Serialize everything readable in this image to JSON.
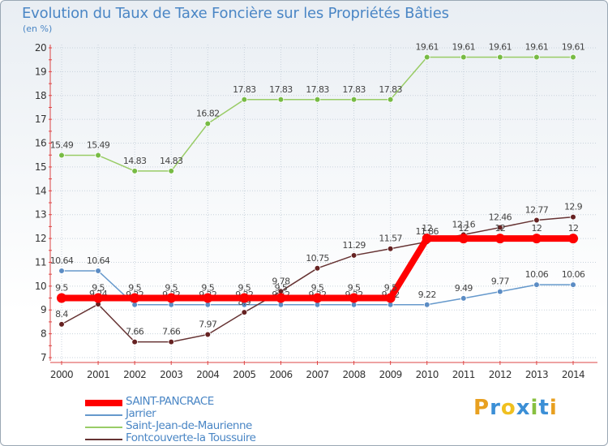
{
  "header": {
    "title": "Evolution du Taux de Taxe Foncière sur les Propriétés Bâties",
    "unit": "(en %)"
  },
  "legend": [
    {
      "label": "SAINT-PANCRACE",
      "color": "#ff0000"
    },
    {
      "label": "Jarrier",
      "color": "#6699cc"
    },
    {
      "label": "Saint-Jean-de-Maurienne",
      "color": "#99cc66"
    },
    {
      "label": "Fontcouverte-la Toussuire",
      "color": "#663333"
    }
  ],
  "logo": {
    "letters": [
      "P",
      "r",
      "o",
      "x",
      "i",
      "t",
      "i"
    ]
  },
  "chart_data": {
    "type": "line",
    "title": "Evolution du Taux de Taxe Foncière sur les Propriétés Bâties",
    "ylabel": "(en %)",
    "xlabel": "",
    "ylim": [
      7,
      20
    ],
    "yticks": [
      7,
      8,
      9,
      10,
      11,
      12,
      13,
      14,
      15,
      16,
      17,
      18,
      19,
      20
    ],
    "categories": [
      "2000",
      "2001",
      "2002",
      "2003",
      "2004",
      "2005",
      "2006",
      "2007",
      "2008",
      "2009",
      "2010",
      "2011",
      "2012",
      "2013",
      "2014"
    ],
    "series": [
      {
        "name": "Jarrier",
        "color": "#6699cc",
        "marker": "#5b8cc4",
        "values": [
          10.64,
          10.64,
          9.22,
          9.22,
          9.22,
          9.22,
          9.22,
          9.22,
          9.22,
          9.22,
          9.22,
          9.49,
          9.77,
          10.06,
          10.06
        ],
        "labels": [
          "10.64",
          "10.64",
          "9.22",
          "9.22",
          "9.22",
          "9.22",
          "9.22",
          "9.22",
          "9.22",
          "9.22",
          "9.22",
          "9.49",
          "9.77",
          "10.06",
          "10.06"
        ]
      },
      {
        "name": "Saint-Jean-de-Maurienne",
        "color": "#99cc66",
        "marker": "#77bb44",
        "values": [
          15.49,
          15.49,
          14.83,
          14.83,
          16.82,
          17.83,
          17.83,
          17.83,
          17.83,
          17.83,
          19.61,
          19.61,
          19.61,
          19.61,
          19.61
        ],
        "labels": [
          "15.49",
          "15.49",
          "14.83",
          "14.83",
          "16.82",
          "17.83",
          "17.83",
          "17.83",
          "17.83",
          "17.83",
          "19.61",
          "19.61",
          "19.61",
          "19.61",
          "19.61"
        ]
      },
      {
        "name": "Fontcouverte-la Toussuire",
        "color": "#663333",
        "marker": "#662222",
        "values": [
          8.4,
          9.24,
          7.66,
          7.66,
          7.97,
          8.9,
          9.78,
          10.75,
          11.29,
          11.57,
          11.86,
          12.16,
          12.46,
          12.77,
          12.9
        ],
        "labels": [
          "8.4",
          "9.24",
          "7.66",
          "7.66",
          "7.97",
          "8.9",
          "9.78",
          "10.75",
          "11.29",
          "11.57",
          "11.86",
          "12.16",
          "12.46",
          "12.77",
          "12.9"
        ]
      },
      {
        "name": "SAINT-PANCRACE",
        "color": "#ff0000",
        "marker": "#ff0000",
        "values": [
          9.5,
          9.5,
          9.5,
          9.5,
          9.5,
          9.5,
          9.5,
          9.5,
          9.5,
          9.5,
          12,
          12,
          12,
          12,
          12
        ],
        "labels": [
          "9.5",
          "9.5",
          "9.5",
          "9.5",
          "9.5",
          "9.5",
          "9.5",
          "9.5",
          "9.5",
          "9.5",
          "12",
          "12",
          "12",
          "12",
          "12"
        ]
      }
    ]
  }
}
